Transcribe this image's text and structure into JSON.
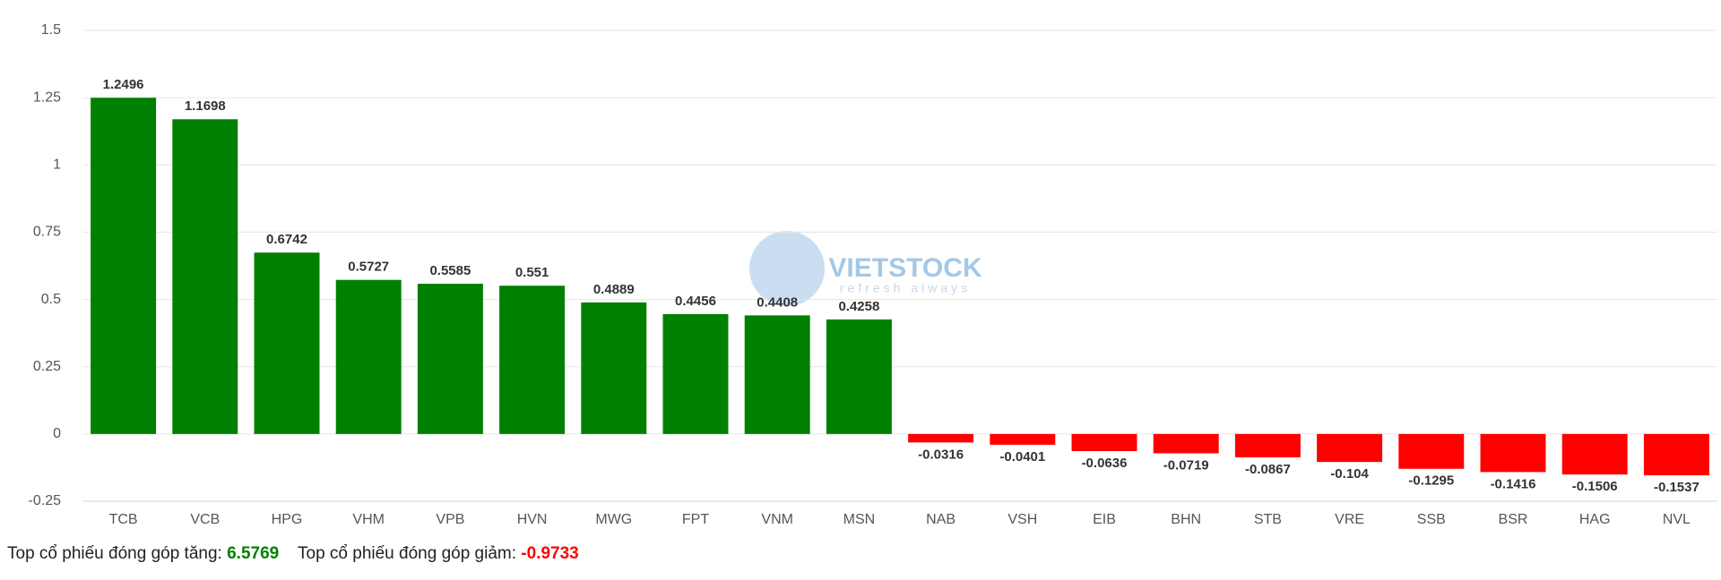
{
  "chart_data": {
    "type": "bar",
    "categories": [
      "TCB",
      "VCB",
      "HPG",
      "VHM",
      "VPB",
      "HVN",
      "MWG",
      "FPT",
      "VNM",
      "MSN",
      "NAB",
      "VSH",
      "EIB",
      "BHN",
      "STB",
      "VRE",
      "SSB",
      "BSR",
      "HAG",
      "NVL"
    ],
    "values": [
      1.2496,
      1.1698,
      0.6742,
      0.5727,
      0.5585,
      0.551,
      0.4889,
      0.4456,
      0.4408,
      0.4258,
      -0.0316,
      -0.0401,
      -0.0636,
      -0.0719,
      -0.0867,
      -0.104,
      -0.1295,
      -0.1416,
      -0.1506,
      -0.1537
    ],
    "color_positive": "#008000",
    "color_negative": "#ff0000",
    "ylim": [
      -0.25,
      1.5
    ],
    "yticks": [
      -0.25,
      0,
      0.25,
      0.5,
      0.75,
      1,
      1.25,
      1.5
    ],
    "grid": true,
    "watermark": {
      "brand": "VIETSTOCK",
      "slogan": "refresh always"
    }
  },
  "summary": {
    "up_label": "Top cổ phiếu đóng góp tăng:",
    "up_value": 6.5769,
    "down_label": "Top cổ phiếu đóng góp giảm:",
    "down_value": -0.9733
  }
}
